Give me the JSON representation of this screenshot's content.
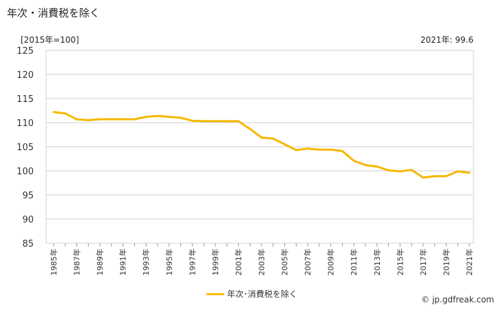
{
  "header": {
    "title": "年次・消費税を除く",
    "unit": "[2015年=100]",
    "latest": "2021年: 99.6"
  },
  "footer": {
    "credit": "© jp.gdfreak.com"
  },
  "chart_data": {
    "type": "line",
    "x": [
      "1985年",
      "1986年",
      "1987年",
      "1988年",
      "1989年",
      "1990年",
      "1991年",
      "1992年",
      "1993年",
      "1994年",
      "1995年",
      "1996年",
      "1997年",
      "1998年",
      "1999年",
      "2000年",
      "2001年",
      "2002年",
      "2003年",
      "2004年",
      "2005年",
      "2006年",
      "2007年",
      "2008年",
      "2009年",
      "2010年",
      "2011年",
      "2012年",
      "2013年",
      "2014年",
      "2015年",
      "2016年",
      "2017年",
      "2018年",
      "2019年",
      "2020年",
      "2021年"
    ],
    "x_tick_labels": [
      "1985年",
      "1987年",
      "1989年",
      "1991年",
      "1993年",
      "1995年",
      "1997年",
      "1999年",
      "2001年",
      "2003年",
      "2005年",
      "2007年",
      "2009年",
      "2011年",
      "2013年",
      "2015年",
      "2017年",
      "2019年",
      "2021年"
    ],
    "series": [
      {
        "name": "年次･消費税を除く",
        "color": "#f5b800",
        "values": [
          112.2,
          111.9,
          110.7,
          110.5,
          110.7,
          110.7,
          110.7,
          110.7,
          111.2,
          111.4,
          111.2,
          111.0,
          110.4,
          110.3,
          110.3,
          110.3,
          110.3,
          108.7,
          106.9,
          106.7,
          105.5,
          104.3,
          104.6,
          104.4,
          104.4,
          104.1,
          102.1,
          101.2,
          100.9,
          100.1,
          99.9,
          100.2,
          98.6,
          98.9,
          98.9,
          99.9,
          99.6
        ]
      }
    ],
    "ylim": [
      85,
      125
    ],
    "yticks": [
      85,
      90,
      95,
      100,
      105,
      110,
      115,
      120,
      125
    ],
    "grid": true,
    "legend_position": "bottom-center",
    "title": "",
    "xlabel": "",
    "ylabel": ""
  }
}
